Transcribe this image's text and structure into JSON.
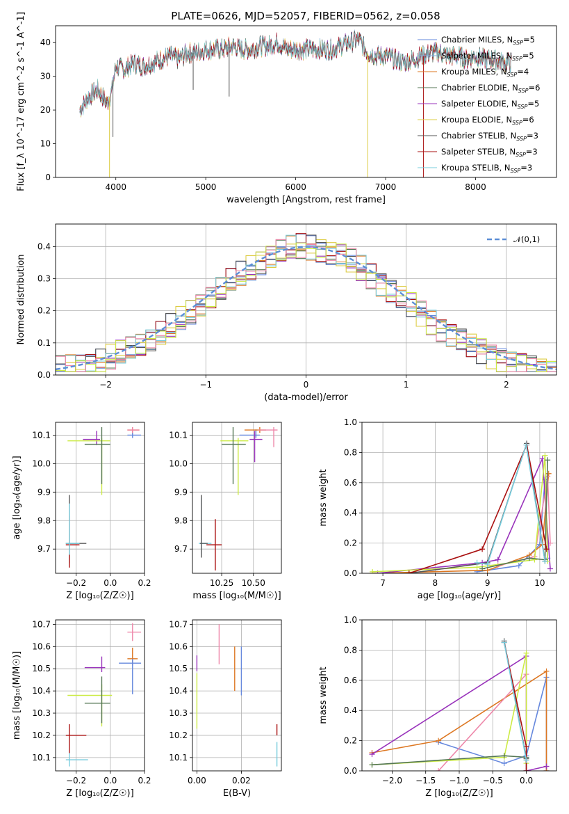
{
  "figure": {
    "title": "PLATE=0626, MJD=52057, FIBERID=0562, z=0.058"
  },
  "colors": {
    "series": [
      "#6688dd",
      "#88aadd",
      "#dd7722",
      "#557755",
      "#9933bb",
      "#ddcc44",
      "#555555",
      "#aa1111",
      "#77ccdd",
      "#cceb44",
      "#ee88aa"
    ]
  },
  "legend": [
    {
      "label": "Chabrier MILES, N_SSP=5",
      "color": "#6688dd"
    },
    {
      "label": "Salpeter MILES, N_SSP=5",
      "color": "#88aadd"
    },
    {
      "label": "Kroupa MILES, N_SSP=4",
      "color": "#dd7722"
    },
    {
      "label": "Chabrier ELODIE, N_SSP=6",
      "color": "#557755"
    },
    {
      "label": "Salpeter ELODIE, N_SSP=5",
      "color": "#9933bb"
    },
    {
      "label": "Kroupa ELODIE, N_SSP=6",
      "color": "#ddcc44"
    },
    {
      "label": "Chabrier STELIB, N_SSP=3",
      "color": "#555555"
    },
    {
      "label": "Salpeter STELIB, N_SSP=3",
      "color": "#aa1111"
    },
    {
      "label": "Kroupa STELIB, N_SSP=3",
      "color": "#77ccdd"
    }
  ],
  "chart_data": [
    {
      "id": "spectrum",
      "type": "line",
      "xlabel": "wavelength [Angstrom, rest frame]",
      "ylabel": "Flux [f_λ 10^-17 erg cm^-2 s^-1 A^-1]",
      "xlim": [
        3330,
        8900
      ],
      "ylim": [
        0,
        45
      ],
      "xticks": [
        4000,
        5000,
        6000,
        7000,
        8000
      ],
      "yticks": [
        0,
        10,
        20,
        30,
        40
      ],
      "x": [
        3600,
        3700,
        3800,
        3900,
        3950,
        4000,
        4100,
        4200,
        4300,
        4400,
        4500,
        4600,
        4700,
        4800,
        4900,
        5000,
        5100,
        5200,
        5300,
        5400,
        5500,
        5600,
        5700,
        5800,
        5900,
        6000,
        6100,
        6200,
        6300,
        6400,
        6500,
        6600,
        6700,
        6800,
        6900,
        7000,
        7100,
        7200,
        7300,
        7400,
        7500,
        7600,
        7700,
        7800,
        7900,
        8000,
        8100,
        8200,
        8300,
        8400
      ],
      "y": [
        20,
        24,
        26,
        22,
        25,
        33,
        32,
        34,
        33,
        34,
        35,
        36,
        35,
        37,
        37,
        38,
        38,
        38,
        39,
        38,
        38,
        39,
        39,
        40,
        38,
        38,
        38,
        38,
        38,
        38,
        39,
        40,
        41,
        37,
        36,
        36,
        35,
        34,
        35,
        36,
        37,
        37,
        36,
        36,
        35,
        36,
        35,
        35,
        34,
        34
      ],
      "grid": false,
      "legend_position": "upper right"
    },
    {
      "id": "residuals",
      "type": "line",
      "xlabel": "(data-model)/error",
      "ylabel": "Normed distribution",
      "xlim": [
        -2.5,
        2.5
      ],
      "ylim": [
        0,
        0.47
      ],
      "xticks": [
        -2,
        -1,
        0,
        1,
        2
      ],
      "yticks": [
        0.0,
        0.1,
        0.2,
        0.3,
        0.4
      ],
      "xtick_labels": [
        "−2",
        "−1",
        "0",
        "1",
        "2"
      ],
      "yticks_labels": [
        "0.0",
        "0.1",
        "0.2",
        "0.3",
        "0.4"
      ],
      "reference": {
        "name": "𝒩(0,1)",
        "mean": 0,
        "sigma": 1
      },
      "histogram_bin_width": 0.1,
      "grid": true,
      "legend_position": "upper right"
    },
    {
      "id": "age_vs_Z",
      "type": "scatter",
      "xlabel": "Z [log₁₀(Z/Z☉)]",
      "ylabel": "age  [log₁₀(age/yr)]",
      "xlim": [
        -0.32,
        0.2
      ],
      "ylim": [
        9.615,
        10.145
      ],
      "xticks": [
        -0.2,
        0.0,
        0.2
      ],
      "xtick_labels": [
        "−0.2",
        "0.0",
        "0.2"
      ],
      "yticks": [
        9.7,
        9.8,
        9.9,
        10.0,
        10.1
      ],
      "ytick_labels": [
        "9.7",
        "9.8",
        "9.9",
        "10.0",
        "10.1"
      ],
      "points": [
        {
          "x": 0.13,
          "y": 10.1,
          "xerr": [
            0.03,
            0.05
          ],
          "yerr": [
            0.01,
            0.02
          ],
          "color": "#6688dd"
        },
        {
          "x": 0.13,
          "y": 10.118,
          "xerr": [
            0.03,
            0.04
          ],
          "yerr": [
            0.01,
            0.01
          ],
          "color": "#dd7722"
        },
        {
          "x": 0.13,
          "y": 10.118,
          "xerr": [
            0.03,
            0.04
          ],
          "yerr": [
            0.01,
            0.01
          ],
          "color": "#ee88aa"
        },
        {
          "x": -0.08,
          "y": 10.085,
          "xerr": [
            0.08,
            0.02
          ],
          "yerr": [
            0.02,
            0.03
          ],
          "color": "#9933bb"
        },
        {
          "x": -0.05,
          "y": 10.08,
          "xerr": [
            0.2,
            0.05
          ],
          "yerr": [
            0.19,
            0.01
          ],
          "color": "#cceb44"
        },
        {
          "x": -0.05,
          "y": 10.068,
          "xerr": [
            0.1,
            0.05
          ],
          "yerr": [
            0.14,
            0.06
          ],
          "color": "#557755"
        },
        {
          "x": -0.24,
          "y": 9.72,
          "xerr": [
            0.02,
            0.1
          ],
          "yerr": [
            0.07,
            0.17
          ],
          "color": "#555555"
        },
        {
          "x": -0.24,
          "y": 9.715,
          "xerr": [
            0.02,
            0.06
          ],
          "yerr": [
            0.08,
            0.1
          ],
          "color": "#aa1111"
        },
        {
          "x": -0.24,
          "y": 9.72,
          "xerr": [
            0.02,
            0.06
          ],
          "yerr": [
            0.04,
            0.14
          ],
          "color": "#77ccdd"
        }
      ],
      "grid": true
    },
    {
      "id": "age_vs_mass",
      "type": "scatter",
      "xlabel": "mass [log₁₀(M/M☉)]",
      "ylabel": "",
      "xlim": [
        10.02,
        10.72
      ],
      "ylim": [
        9.615,
        10.145
      ],
      "xticks": [
        10.25,
        10.5
      ],
      "xtick_labels": [
        "10.25",
        "10.50"
      ],
      "yticks": [
        9.7,
        9.8,
        9.9,
        10.0,
        10.1
      ],
      "ytick_labels": [
        "9.7",
        "9.8",
        "9.9",
        "10.0",
        "10.1"
      ],
      "points": [
        {
          "x": 10.52,
          "y": 10.1,
          "xerr": [
            0.13,
            0.03
          ],
          "yerr": [
            0.01,
            0.02
          ],
          "color": "#6688dd"
        },
        {
          "x": 10.55,
          "y": 10.118,
          "xerr": [
            0.12,
            0.05
          ],
          "yerr": [
            0.01,
            0.01
          ],
          "color": "#dd7722"
        },
        {
          "x": 10.66,
          "y": 10.118,
          "xerr": [
            0.12,
            0.03
          ],
          "yerr": [
            0.06,
            0.01
          ],
          "color": "#ee88aa"
        },
        {
          "x": 10.51,
          "y": 10.085,
          "xerr": [
            0.04,
            0.06
          ],
          "yerr": [
            0.08,
            0.03
          ],
          "color": "#9933bb"
        },
        {
          "x": 10.38,
          "y": 10.08,
          "xerr": [
            0.14,
            0.08
          ],
          "yerr": [
            0.19,
            0.01
          ],
          "color": "#cceb44"
        },
        {
          "x": 10.34,
          "y": 10.068,
          "xerr": [
            0.09,
            0.1
          ],
          "yerr": [
            0.14,
            0.06
          ],
          "color": "#557755"
        },
        {
          "x": 10.2,
          "y": 9.715,
          "xerr": [
            0.07,
            0.05
          ],
          "yerr": [
            0.09,
            0.09
          ],
          "color": "#aa1111"
        },
        {
          "x": 10.09,
          "y": 9.72,
          "xerr": [
            0.02,
            0.08
          ],
          "yerr": [
            0.04,
            0.16
          ],
          "color": "#77ccdd"
        },
        {
          "x": 10.09,
          "y": 9.72,
          "xerr": [
            0.01,
            0.05
          ],
          "yerr": [
            0.05,
            0.17
          ],
          "color": "#555555"
        }
      ],
      "grid": true
    },
    {
      "id": "weight_vs_age",
      "type": "line",
      "xlabel": "age  [log₁₀(age/yr)]",
      "ylabel": "mass weight",
      "xlim": [
        6.6,
        10.32
      ],
      "ylim": [
        0,
        1
      ],
      "xticks": [
        7,
        8,
        9,
        10
      ],
      "yticks": [
        0.0,
        0.2,
        0.4,
        0.6,
        0.8,
        1.0
      ],
      "ytick_labels": [
        "0.0",
        "0.2",
        "0.4",
        "0.6",
        "0.8",
        "1.0"
      ],
      "series": [
        {
          "color": "#6688dd",
          "x": [
            8.8,
            9.6,
            10.0,
            10.1,
            10.15
          ],
          "y": [
            0.01,
            0.05,
            0.19,
            0.62,
            0.1
          ]
        },
        {
          "color": "#dd7722",
          "x": [
            6.8,
            9.0,
            9.8,
            10.05,
            10.17
          ],
          "y": [
            0.0,
            0.02,
            0.12,
            0.19,
            0.66
          ]
        },
        {
          "color": "#ee88aa",
          "x": [
            9.2,
            9.9,
            10.15,
            10.2
          ],
          "y": [
            0.05,
            0.11,
            0.64,
            0.2
          ]
        },
        {
          "color": "#9933bb",
          "x": [
            6.9,
            8.9,
            9.2,
            10.05,
            10.2
          ],
          "y": [
            0.0,
            0.07,
            0.09,
            0.76,
            0.03
          ]
        },
        {
          "color": "#cceb44",
          "x": [
            6.8,
            8.8,
            9.9,
            10.1,
            10.15
          ],
          "y": [
            0.01,
            0.04,
            0.09,
            0.78,
            0.08
          ]
        },
        {
          "color": "#557755",
          "x": [
            8.9,
            9.8,
            10.1,
            10.15
          ],
          "y": [
            0.03,
            0.1,
            0.09,
            0.75
          ]
        },
        {
          "color": "#555555",
          "x": [
            7.5,
            9.0,
            9.75,
            10.1
          ],
          "y": [
            0.0,
            0.07,
            0.86,
            0.08
          ]
        },
        {
          "color": "#aa1111",
          "x": [
            7.5,
            8.9,
            9.75,
            10.13
          ],
          "y": [
            0.0,
            0.16,
            0.85,
            0.16
          ]
        },
        {
          "color": "#77ccdd",
          "x": [
            8.8,
            9.0,
            9.74,
            10.1
          ],
          "y": [
            0.07,
            0.06,
            0.85,
            0.08
          ]
        }
      ],
      "grid": true
    },
    {
      "id": "mass_vs_Z",
      "type": "scatter",
      "xlabel": "Z [log₁₀(Z/Z☉)]",
      "ylabel": "mass [log₁₀(M/M☉)]",
      "xlim": [
        -0.32,
        0.2
      ],
      "ylim": [
        10.04,
        10.72
      ],
      "xticks": [
        -0.2,
        0.0,
        0.2
      ],
      "xtick_labels": [
        "−0.2",
        "0.0",
        "0.2"
      ],
      "yticks": [
        10.1,
        10.2,
        10.3,
        10.4,
        10.5,
        10.6,
        10.7
      ],
      "ytick_labels": [
        "10.1",
        "10.2",
        "10.3",
        "10.4",
        "10.5",
        "10.6",
        "10.7"
      ],
      "points": [
        {
          "x": 0.13,
          "y": 10.665,
          "xerr": [
            0.03,
            0.05
          ],
          "yerr": [
            0.04,
            0.04
          ],
          "color": "#ee88aa"
        },
        {
          "x": 0.13,
          "y": 10.545,
          "xerr": [
            0.03,
            0.03
          ],
          "yerr": [
            0.03,
            0.05
          ],
          "color": "#dd7722"
        },
        {
          "x": 0.13,
          "y": 10.525,
          "xerr": [
            0.08,
            0.05
          ],
          "yerr": [
            0.14,
            0.02
          ],
          "color": "#6688dd"
        },
        {
          "x": -0.05,
          "y": 10.505,
          "xerr": [
            0.1,
            0.02
          ],
          "yerr": [
            0.02,
            0.05
          ],
          "color": "#9933bb"
        },
        {
          "x": -0.05,
          "y": 10.38,
          "xerr": [
            0.2,
            0.06
          ],
          "yerr": [
            0.14,
            0.05
          ],
          "color": "#cceb44"
        },
        {
          "x": -0.05,
          "y": 10.345,
          "xerr": [
            0.1,
            0.05
          ],
          "yerr": [
            0.09,
            0.12
          ],
          "color": "#557755"
        },
        {
          "x": -0.24,
          "y": 10.2,
          "xerr": [
            0.02,
            0.1
          ],
          "yerr": [
            0.08,
            0.05
          ],
          "color": "#aa1111"
        },
        {
          "x": -0.24,
          "y": 10.09,
          "xerr": [
            0.02,
            0.11
          ],
          "yerr": [
            0.03,
            0.03
          ],
          "color": "#77ccdd"
        }
      ],
      "grid": true
    },
    {
      "id": "mass_vs_ebv",
      "type": "scatter",
      "xlabel": "E(B-V)",
      "ylabel": "",
      "xlim": [
        -0.002,
        0.038
      ],
      "ylim": [
        10.04,
        10.72
      ],
      "xticks": [
        0.0,
        0.02
      ],
      "xtick_labels": [
        "0.00",
        "0.02"
      ],
      "yticks": [
        10.1,
        10.2,
        10.3,
        10.4,
        10.5,
        10.6,
        10.7
      ],
      "ytick_labels": [
        "10.1",
        "10.2",
        "10.3",
        "10.4",
        "10.5",
        "10.6",
        "10.7"
      ],
      "points": [
        {
          "x": 0.01,
          "y": 10.6,
          "yerr": [
            0.08,
            0.1
          ],
          "color": "#ee88aa"
        },
        {
          "x": 0.017,
          "y": 10.5,
          "yerr": [
            0.1,
            0.1
          ],
          "color": "#dd7722"
        },
        {
          "x": 0.02,
          "y": 10.48,
          "yerr": [
            0.1,
            0.12
          ],
          "color": "#6688dd"
        },
        {
          "x": 0.0,
          "y": 10.51,
          "yerr": [
            0.02,
            0.05
          ],
          "color": "#9933bb"
        },
        {
          "x": 0.0,
          "y": 10.35,
          "yerr": [
            0.12,
            0.13
          ],
          "color": "#cceb44"
        },
        {
          "x": 0.036,
          "y": 10.2,
          "yerr": [
            0.0,
            0.05
          ],
          "color": "#aa1111"
        },
        {
          "x": 0.036,
          "y": 10.11,
          "yerr": [
            0.05,
            0.06
          ],
          "color": "#77ccdd"
        }
      ],
      "grid": true
    },
    {
      "id": "weight_vs_Z",
      "type": "line",
      "xlabel": "Z [log₁₀(Z/Z☉)]",
      "ylabel": "mass weight",
      "xlim": [
        -2.45,
        0.45
      ],
      "ylim": [
        0,
        1
      ],
      "xticks": [
        -2.0,
        -1.5,
        -1.0,
        -0.5,
        0.0
      ],
      "xtick_labels": [
        "−2.0",
        "−1.5",
        "−1.0",
        "−0.5",
        "0.0"
      ],
      "yticks": [
        0.0,
        0.2,
        0.4,
        0.6,
        0.8,
        1.0
      ],
      "ytick_labels": [
        "0.0",
        "0.2",
        "0.4",
        "0.6",
        "0.8",
        "1.0"
      ],
      "series": [
        {
          "color": "#6688dd",
          "x": [
            -1.31,
            -0.33,
            0.0,
            0.3,
            0.3
          ],
          "y": [
            0.19,
            0.05,
            0.1,
            0.62,
            0.0
          ]
        },
        {
          "color": "#dd7722",
          "x": [
            -2.3,
            -1.31,
            0.3,
            0.3
          ],
          "y": [
            0.12,
            0.2,
            0.66,
            0.0
          ]
        },
        {
          "color": "#ee88aa",
          "x": [
            -1.31,
            0.0,
            0.0
          ],
          "y": [
            0.0,
            0.64,
            0.2
          ]
        },
        {
          "color": "#9933bb",
          "x": [
            -2.3,
            0.0,
            0.0,
            0.3
          ],
          "y": [
            0.11,
            0.76,
            0.0,
            0.03
          ]
        },
        {
          "color": "#cceb44",
          "x": [
            -2.3,
            -0.33,
            0.0,
            0.0
          ],
          "y": [
            0.04,
            0.09,
            0.78,
            0.05
          ]
        },
        {
          "color": "#557755",
          "x": [
            -2.3,
            -0.33,
            0.0
          ],
          "y": [
            0.04,
            0.1,
            0.09
          ]
        },
        {
          "color": "#555555",
          "x": [
            -0.33,
            0.0,
            0.0
          ],
          "y": [
            0.86,
            0.08,
            0.0
          ]
        },
        {
          "color": "#aa1111",
          "x": [
            -0.33,
            0.0,
            0.0
          ],
          "y": [
            0.85,
            0.16,
            0.0
          ]
        },
        {
          "color": "#77ccdd",
          "x": [
            -0.33,
            0.0
          ],
          "y": [
            0.85,
            0.07
          ]
        }
      ],
      "grid": true
    }
  ]
}
